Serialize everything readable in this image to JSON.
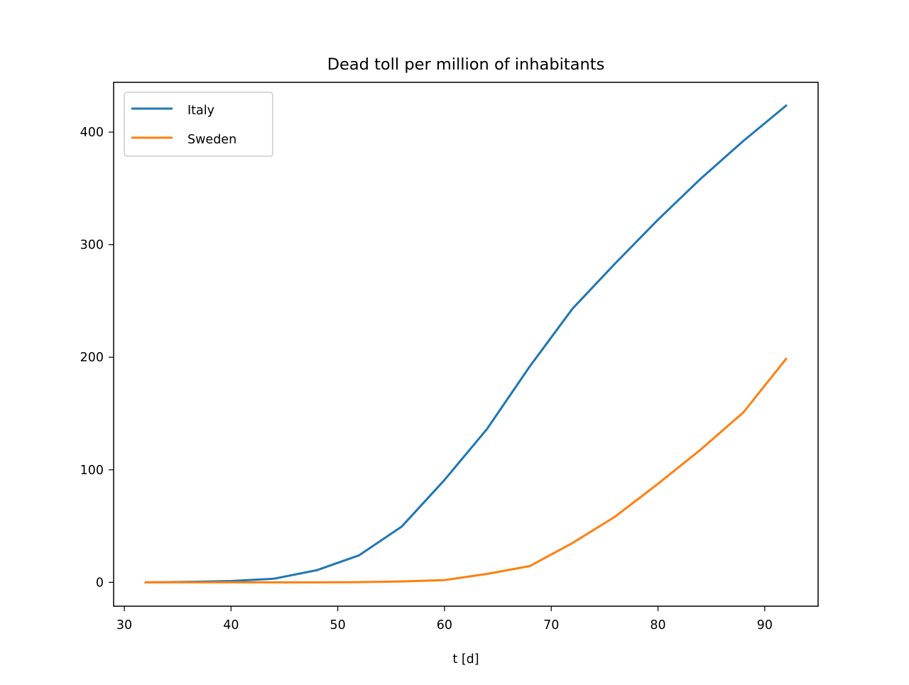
{
  "chart_data": {
    "type": "line",
    "title": "Dead toll per million of inhabitants",
    "xlabel": "t [d]",
    "ylabel": "",
    "xlim": [
      29,
      95
    ],
    "ylim": [
      -21.2,
      444.2
    ],
    "xticks": [
      30,
      40,
      50,
      60,
      70,
      80,
      90
    ],
    "yticks": [
      0,
      100,
      200,
      300,
      400
    ],
    "grid": false,
    "legend_position": "top-left",
    "x": [
      32,
      36,
      40,
      44,
      48,
      52,
      56,
      60,
      64,
      68,
      72,
      76,
      80,
      84,
      88,
      92
    ],
    "series": [
      {
        "name": "Italy",
        "color": "#1f77b4",
        "values": [
          0,
          0.4,
          1.2,
          3.2,
          10.7,
          24.0,
          49.6,
          90.9,
          136.5,
          192.0,
          243.2,
          283.4,
          322.1,
          358.6,
          392.2,
          423.5
        ]
      },
      {
        "name": "Sweden",
        "color": "#ff7f0e",
        "values": [
          0,
          0,
          0,
          0,
          0,
          0.2,
          0.8,
          2.0,
          7.5,
          14.5,
          35.0,
          58.5,
          87.5,
          118.0,
          151.0,
          198.5
        ]
      }
    ]
  }
}
